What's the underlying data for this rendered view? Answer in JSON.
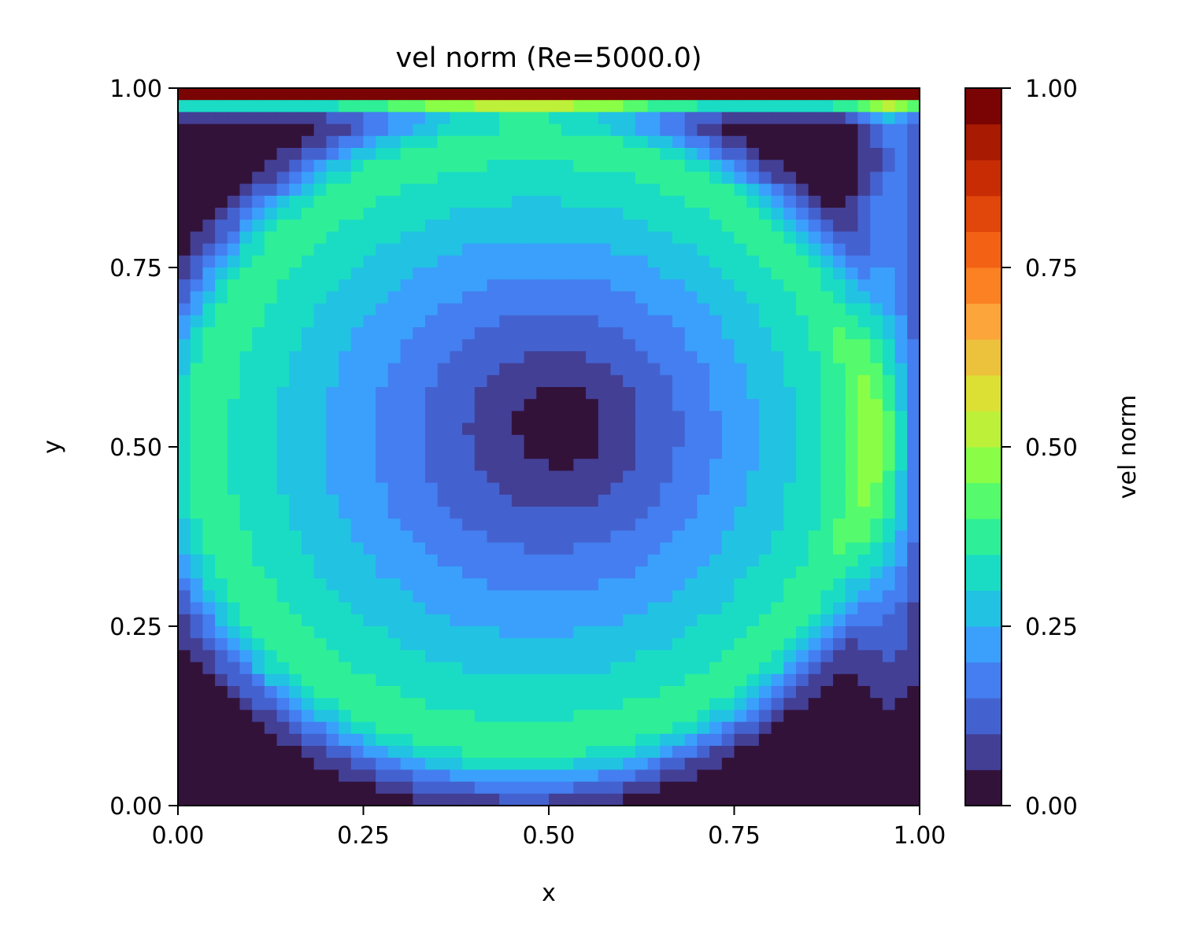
{
  "chart_data": {
    "type": "heatmap",
    "title": "vel norm (Re=5000.0)",
    "xlabel": "x",
    "ylabel": "y",
    "xlim": [
      0.0,
      1.0
    ],
    "ylim": [
      0.0,
      1.0
    ],
    "x_ticks": [
      "0.00",
      "0.25",
      "0.50",
      "0.75",
      "1.00"
    ],
    "y_ticks": [
      "0.00",
      "0.25",
      "0.50",
      "0.75",
      "1.00"
    ],
    "colorbar": {
      "label": "vel norm",
      "range": [
        0.0,
        1.0
      ],
      "ticks": [
        "0.00",
        "0.25",
        "0.50",
        "0.75",
        "1.00"
      ],
      "levels": 20,
      "colors": [
        "#33123a",
        "#433f95",
        "#4462cf",
        "#447ef0",
        "#3aa0fc",
        "#22c2e3",
        "#1adcc4",
        "#2eef97",
        "#55fb6c",
        "#8afe46",
        "#bdf039",
        "#dce035",
        "#ecc13c",
        "#fca53a",
        "#fb8122",
        "#f36214",
        "#e1460a",
        "#c72c05",
        "#a81a02",
        "#7a0403"
      ]
    },
    "grid": false,
    "description_features": {
      "lid_velocity": 1.0,
      "primary_vortex_center": [
        0.52,
        0.53
      ],
      "secondary_vortex_top_right": [
        0.91,
        0.9
      ]
    }
  }
}
